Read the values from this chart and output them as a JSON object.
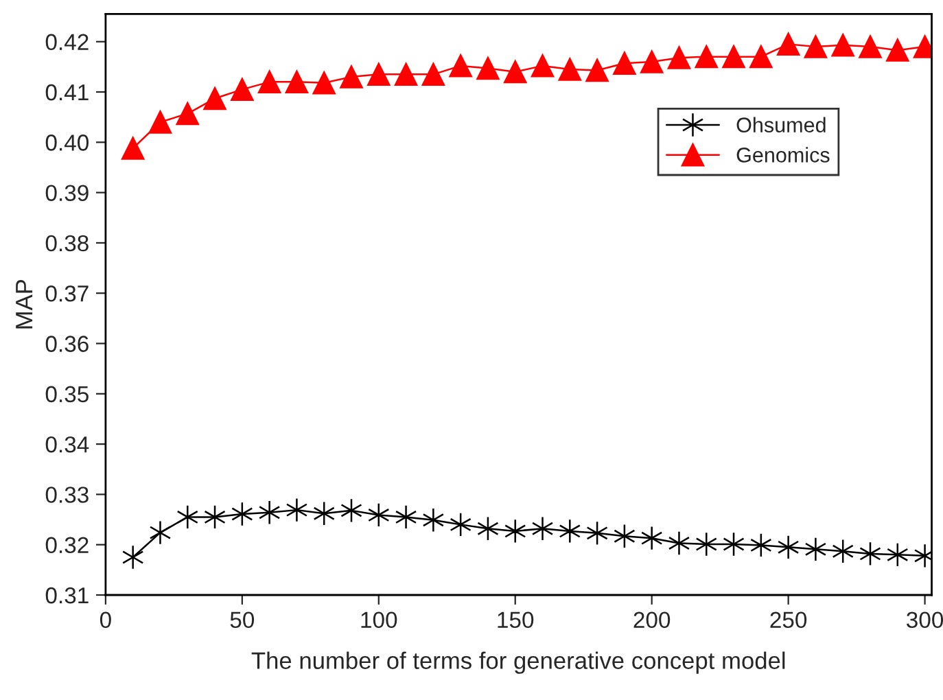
{
  "chart_data": {
    "type": "line",
    "xlabel": "The number of terms for generative concept model",
    "ylabel": "MAP",
    "x": [
      10,
      20,
      30,
      40,
      50,
      60,
      70,
      80,
      90,
      100,
      110,
      120,
      130,
      140,
      150,
      160,
      170,
      180,
      190,
      200,
      210,
      220,
      230,
      240,
      250,
      260,
      270,
      280,
      290,
      300
    ],
    "series": [
      {
        "name": "Ohsumed",
        "color": "#000000",
        "marker": "cross",
        "values": [
          0.3175,
          0.3224,
          0.3255,
          0.3255,
          0.3261,
          0.3264,
          0.3269,
          0.3262,
          0.3268,
          0.3259,
          0.3255,
          0.3249,
          0.324,
          0.3232,
          0.3227,
          0.3232,
          0.3227,
          0.3223,
          0.3217,
          0.3213,
          0.3203,
          0.3201,
          0.3201,
          0.3199,
          0.3195,
          0.3191,
          0.3187,
          0.3182,
          0.318,
          0.3178
        ]
      },
      {
        "name": "Genomics",
        "color": "#ff0000",
        "marker": "triangle",
        "values": [
          0.3988,
          0.404,
          0.4057,
          0.4087,
          0.4105,
          0.412,
          0.412,
          0.4118,
          0.413,
          0.4135,
          0.4135,
          0.4135,
          0.4152,
          0.4147,
          0.414,
          0.4152,
          0.4145,
          0.4143,
          0.4157,
          0.416,
          0.4168,
          0.417,
          0.417,
          0.417,
          0.4195,
          0.419,
          0.4193,
          0.419,
          0.4183,
          0.419
        ]
      }
    ],
    "xlim": [
      0,
      302.5
    ],
    "xticks": [
      0,
      50,
      100,
      150,
      200,
      250,
      300
    ],
    "ylim": [
      0.31,
      0.4255
    ],
    "yticks": [
      0.31,
      0.32,
      0.33,
      0.34,
      0.35,
      0.36,
      0.37,
      0.38,
      0.39,
      {
        "value": 0.4,
        "label": "0.40"
      },
      0.41,
      0.42
    ],
    "grid": false,
    "legend": "right",
    "line_style": "solid"
  }
}
